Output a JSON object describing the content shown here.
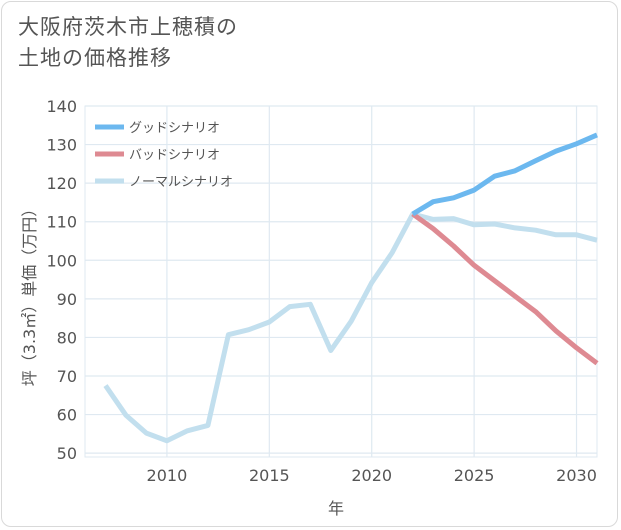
{
  "title_lines": [
    "大阪府茨木市上穂積の",
    "土地の価格推移"
  ],
  "chart_data": {
    "type": "line",
    "title": "大阪府茨木市上穂積の土地の価格推移",
    "xlabel": "年",
    "ylabel": "坪（3.3㎡）単価（万円）",
    "xlim": [
      2006,
      2031
    ],
    "ylim": [
      49,
      140
    ],
    "x_ticks": [
      2010,
      2015,
      2020,
      2025,
      2030
    ],
    "y_ticks": [
      50,
      60,
      70,
      80,
      90,
      100,
      110,
      120,
      130,
      140
    ],
    "grid": true,
    "legend_position": "top-left",
    "series": [
      {
        "name": "グッドシナリオ",
        "color": "#6cb8ef",
        "x": [
          2022,
          2023,
          2024,
          2025,
          2026,
          2027,
          2028,
          2029,
          2030,
          2031
        ],
        "values": [
          112,
          115.2,
          116.2,
          118.2,
          121.8,
          123.2,
          125.8,
          128.3,
          130.2,
          132.5
        ]
      },
      {
        "name": "バッドシナリオ",
        "color": "#de8a92",
        "x": [
          2022,
          2023,
          2024,
          2025,
          2026,
          2027,
          2028,
          2029,
          2030,
          2031
        ],
        "values": [
          112,
          108.2,
          103.7,
          98.7,
          94.7,
          90.7,
          86.7,
          81.7,
          77.3,
          73.3
        ]
      },
      {
        "name": "ノーマルシナリオ",
        "color": "#c2dfee",
        "x": [
          2007,
          2008,
          2009,
          2010,
          2011,
          2012,
          2013,
          2014,
          2015,
          2016,
          2017,
          2018,
          2019,
          2020,
          2021,
          2022,
          2023,
          2024,
          2025,
          2026,
          2027,
          2028,
          2029,
          2030,
          2031
        ],
        "values": [
          67.5,
          59.8,
          55.2,
          53.2,
          55.8,
          57.2,
          80.7,
          82,
          84,
          88,
          88.6,
          76.6,
          84.2,
          94.2,
          102,
          112,
          110.6,
          110.8,
          109.2,
          109.4,
          108.4,
          107.8,
          106.6,
          106.6,
          105.2
        ]
      }
    ]
  }
}
